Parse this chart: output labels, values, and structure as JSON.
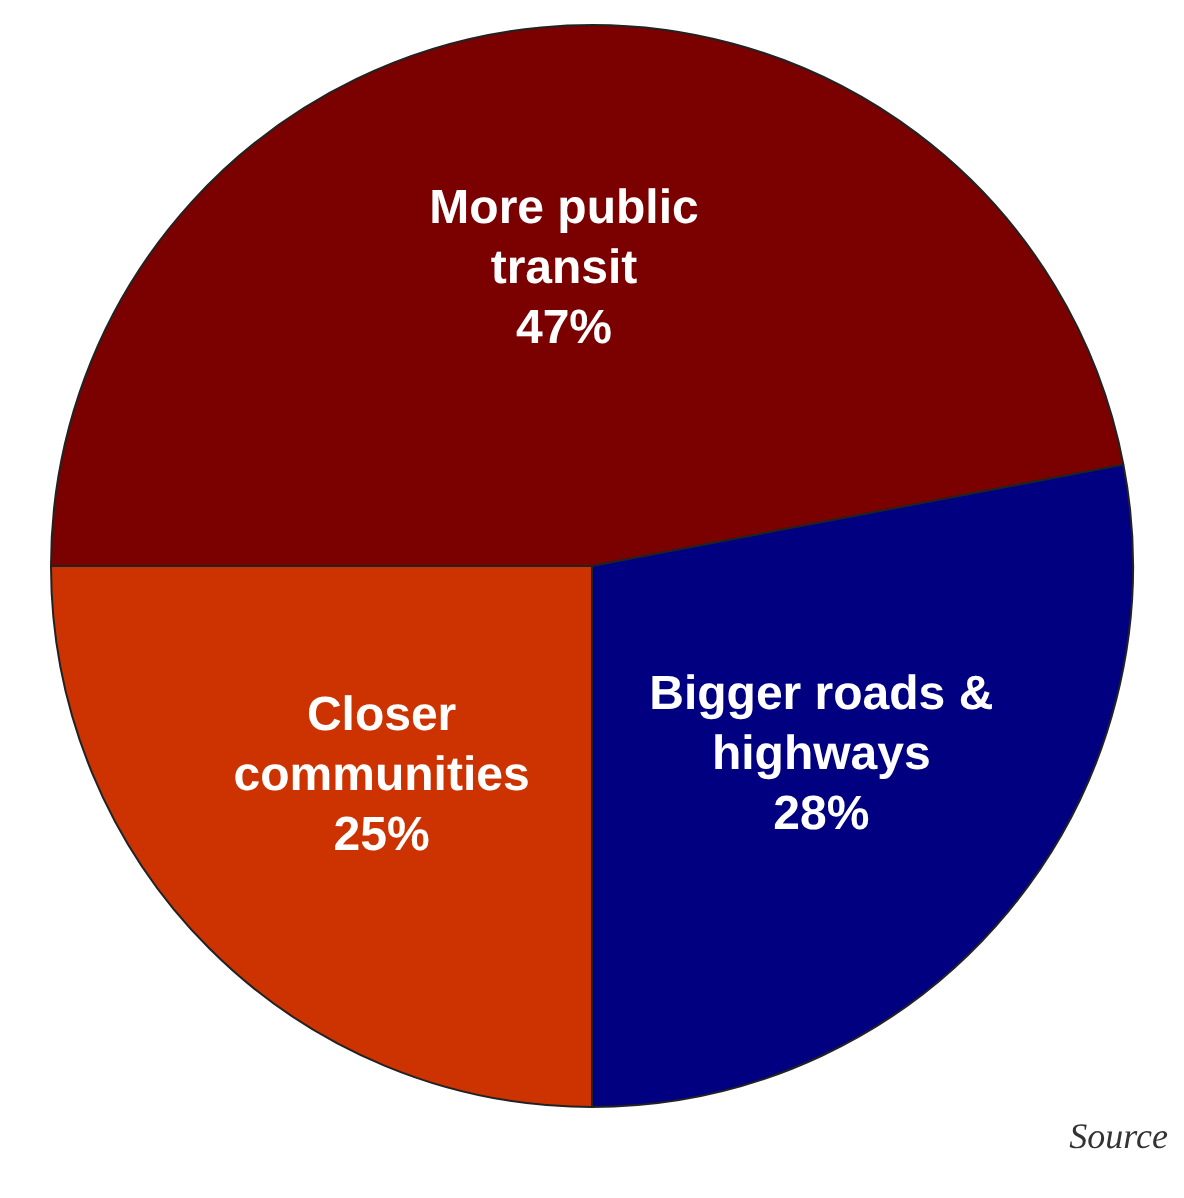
{
  "chart_data": {
    "type": "pie",
    "categories": [
      "More public transit",
      "Bigger roads & highways",
      "Closer communities"
    ],
    "values": [
      47,
      28,
      25
    ],
    "colors": [
      "#7b0000",
      "#000080",
      "#cc3300"
    ],
    "value_labels": [
      "47%",
      "28%",
      "25%"
    ],
    "annotations": [
      "Source"
    ]
  }
}
